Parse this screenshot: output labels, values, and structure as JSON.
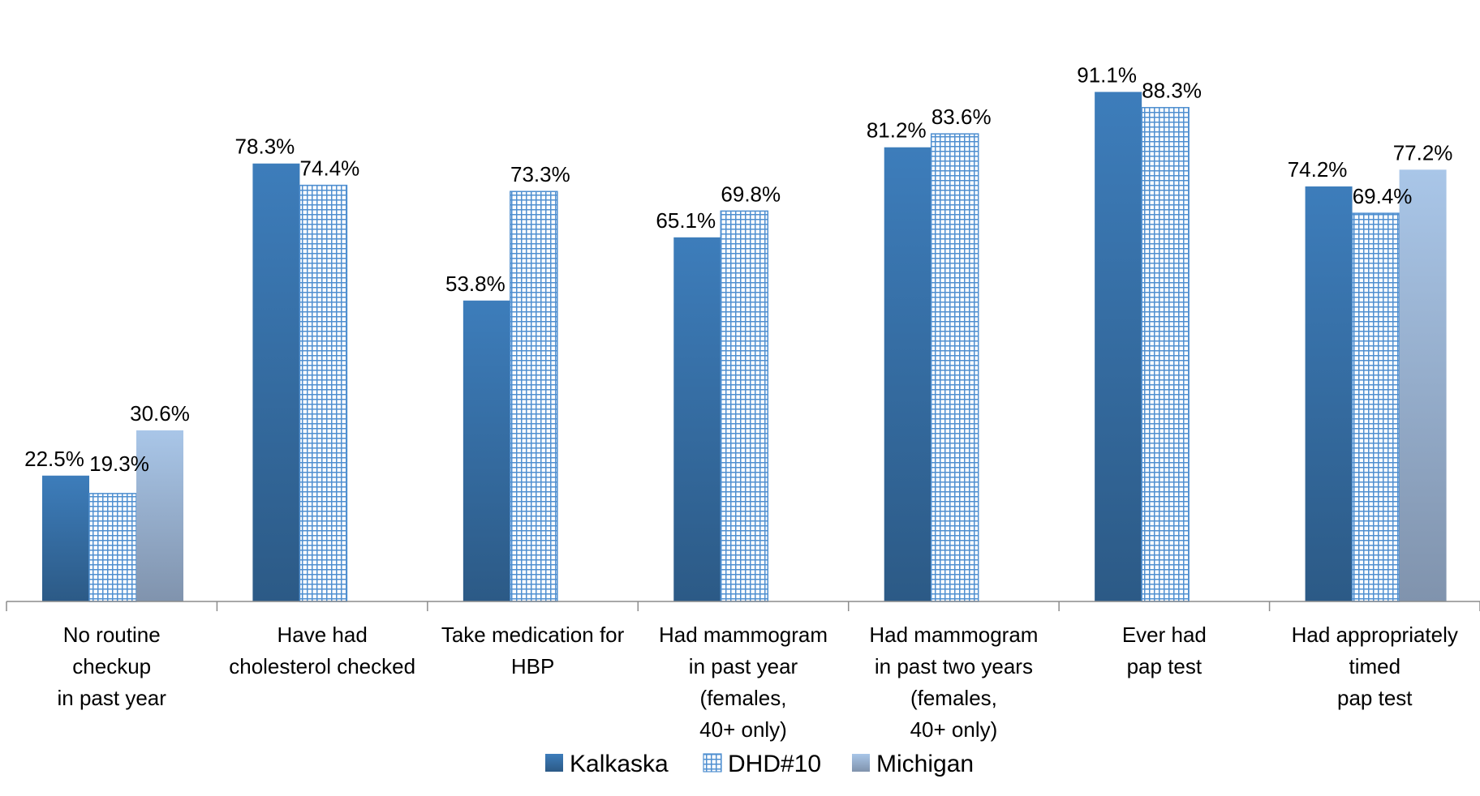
{
  "chart_data": {
    "type": "bar",
    "title": "",
    "xlabel": "",
    "ylabel": "",
    "ylim": [
      0,
      100
    ],
    "grid": false,
    "legend_position": "bottom",
    "categories": [
      [
        "No routine",
        "checkup",
        "in past year"
      ],
      [
        "Have had",
        "cholesterol checked"
      ],
      [
        "Take medication for",
        "HBP"
      ],
      [
        "Had mammogram",
        "in past year",
        "(females,",
        "40+ only)"
      ],
      [
        "Had mammogram",
        "in past two years",
        "(females,",
        "40+ only)"
      ],
      [
        "Ever had",
        "pap test"
      ],
      [
        "Had appropriately",
        "timed",
        "pap test"
      ]
    ],
    "series": [
      {
        "name": "Kalkaska",
        "style": "solid",
        "color_top": "#3d7dbb",
        "color_bottom": "#2c5a86",
        "values": [
          22.5,
          78.3,
          53.8,
          65.1,
          81.2,
          91.1,
          74.2
        ],
        "labels": [
          "22.5%",
          "78.3%",
          "53.8%",
          "65.1%",
          "81.2%",
          "91.1%",
          "74.2%"
        ]
      },
      {
        "name": "DHD#10",
        "style": "grid-pattern",
        "color": "#4f8fd0",
        "values": [
          19.3,
          74.4,
          73.3,
          69.8,
          83.6,
          88.3,
          69.4
        ],
        "labels": [
          "19.3%",
          "74.4%",
          "73.3%",
          "69.8%",
          "83.6%",
          "88.3%",
          "69.4%"
        ]
      },
      {
        "name": "Michigan",
        "style": "solid-gradient",
        "color_top": "#a7c4e6",
        "color_bottom": "#8196b3",
        "values": [
          30.6,
          null,
          null,
          null,
          null,
          null,
          77.2
        ],
        "labels": [
          "30.6%",
          "",
          "",
          "",
          "",
          "",
          "77.2%"
        ]
      }
    ]
  }
}
